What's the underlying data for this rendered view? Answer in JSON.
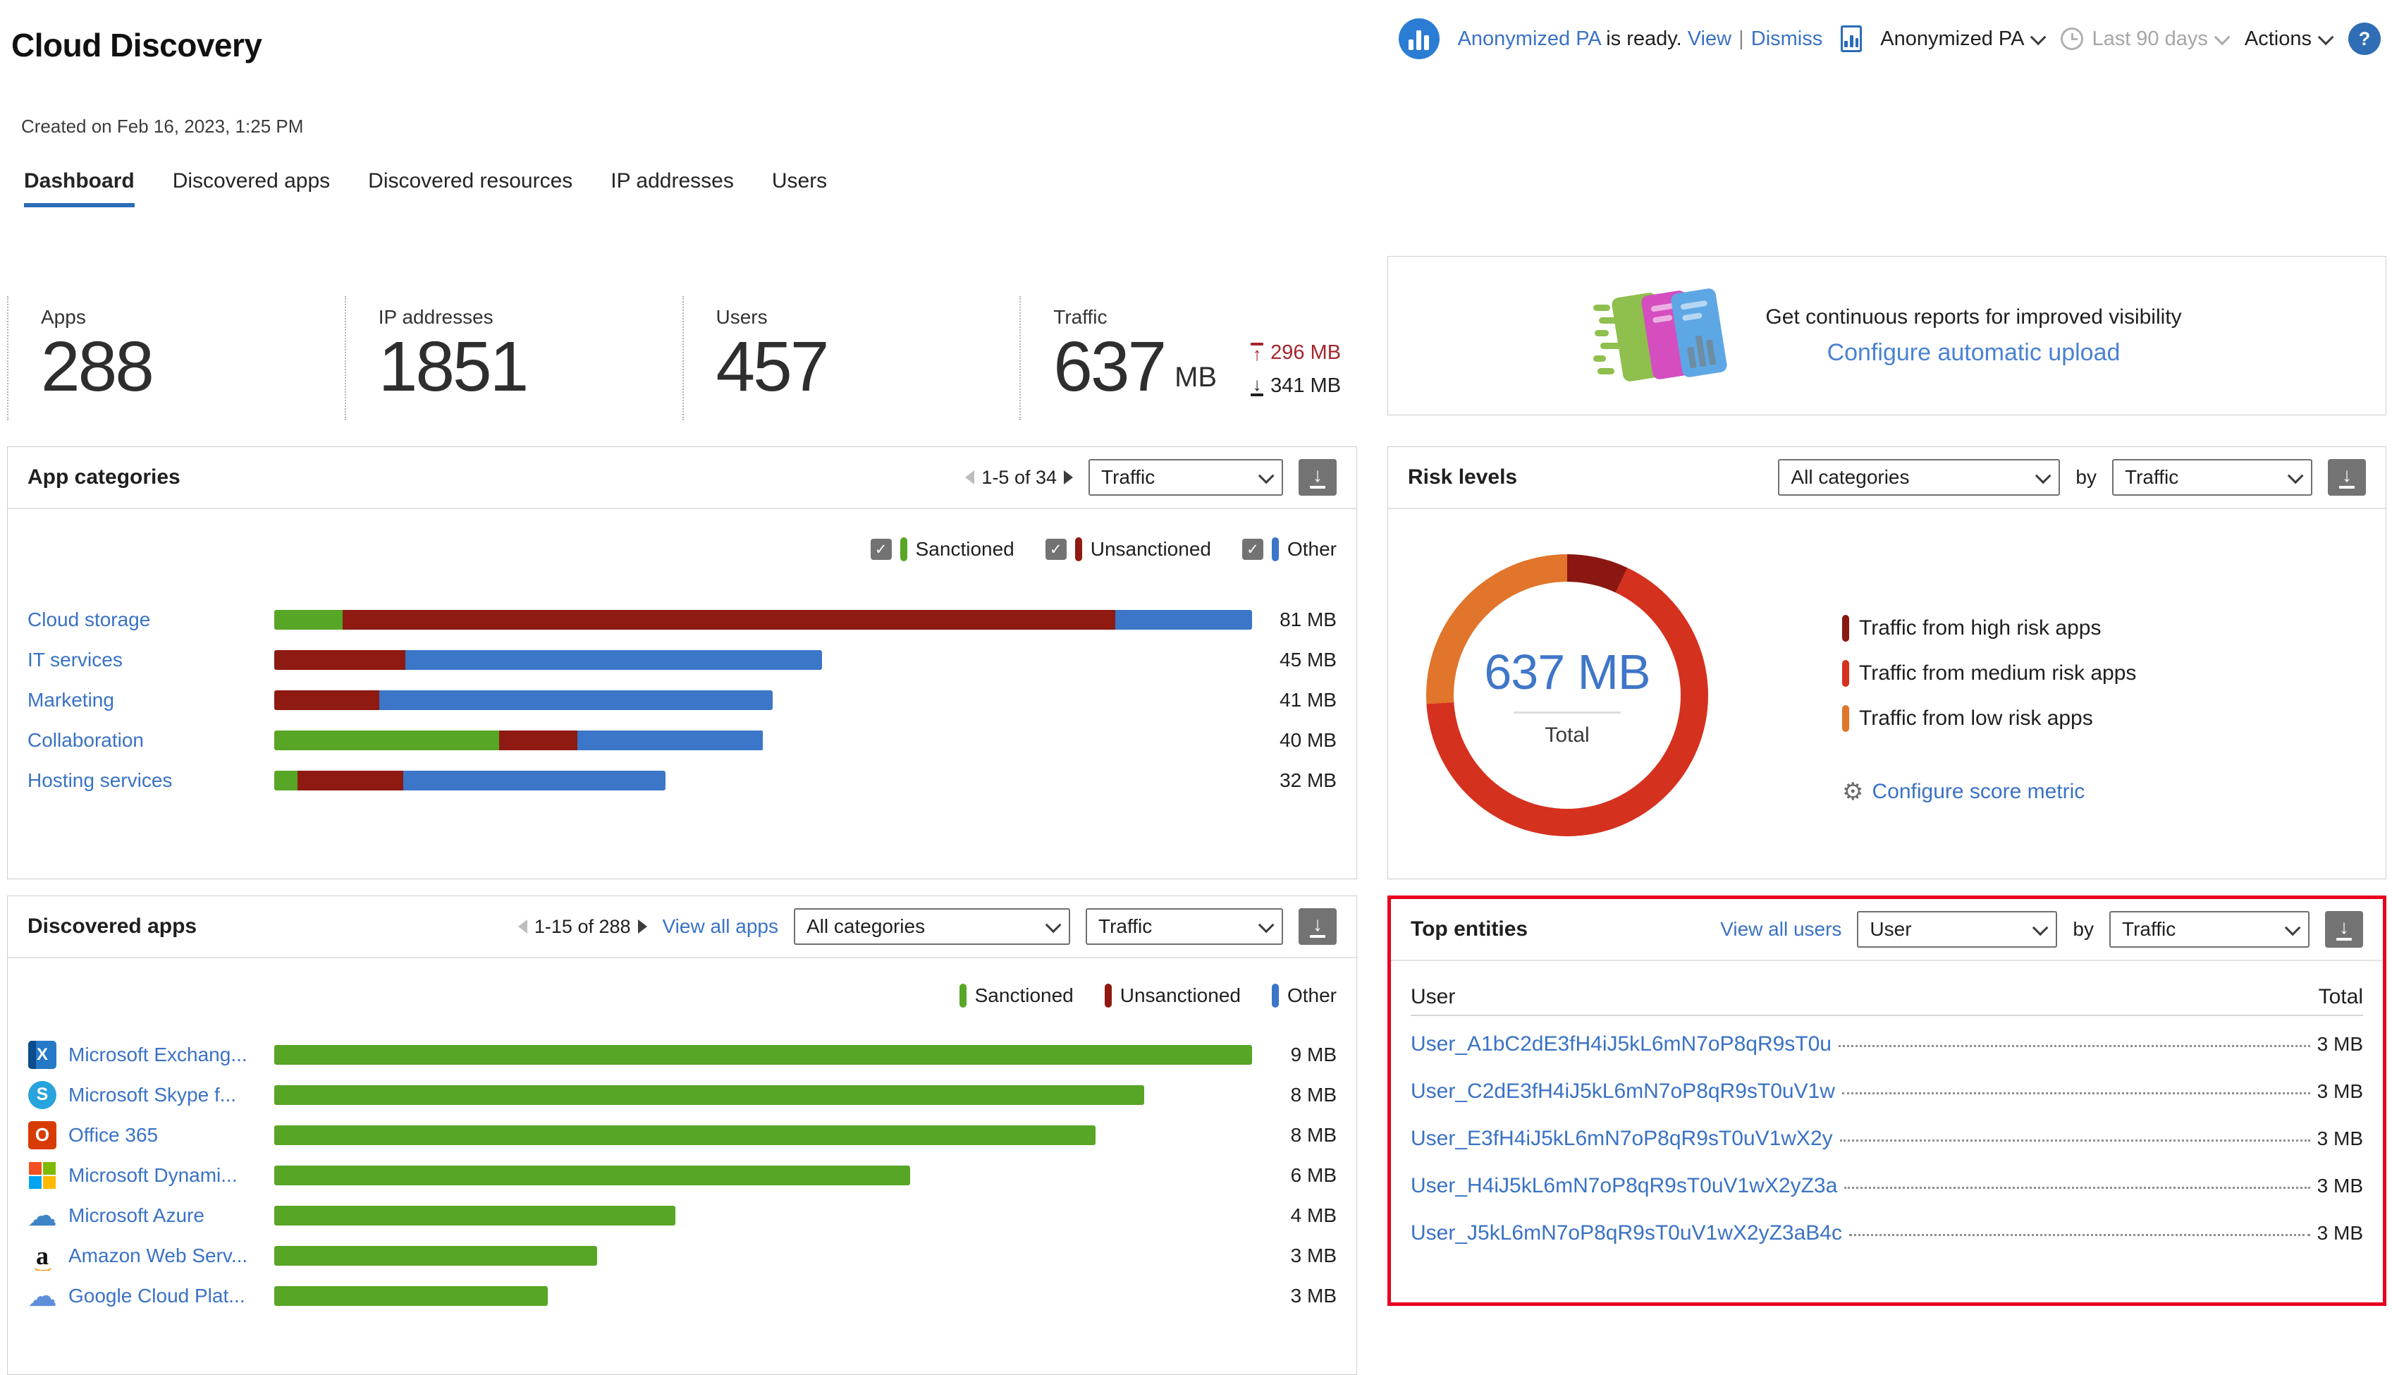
{
  "colors": {
    "sanctioned": "#57a626",
    "unsanctioned": "#8e1a11",
    "other": "#3b76c8",
    "risk_high": "#8a1712",
    "risk_medium": "#d5311f",
    "risk_low": "#e0752b",
    "upload_red": "#a4262c",
    "highlight_red": "#e8001f",
    "link_blue": "#3a72c5",
    "tab_underline_blue": "#2b6cb8"
  },
  "page": {
    "title": "Cloud Discovery",
    "created": "Created on Feb 16, 2023, 1:25 PM"
  },
  "header": {
    "ready_name": "Anonymized PA",
    "ready_suffix": "is ready.",
    "view": "View",
    "divider": "|",
    "dismiss": "Dismiss",
    "report_name": "Anonymized PA",
    "time_range": "Last 90 days",
    "actions": "Actions",
    "help": "?"
  },
  "tabs": [
    {
      "label": "Dashboard",
      "active": true
    },
    {
      "label": "Discovered apps"
    },
    {
      "label": "Discovered resources"
    },
    {
      "label": "IP addresses"
    },
    {
      "label": "Users"
    }
  ],
  "stats": [
    {
      "label": "Apps",
      "value": "288"
    },
    {
      "label": "IP addresses",
      "value": "1851"
    },
    {
      "label": "Users",
      "value": "457"
    },
    {
      "label": "Traffic",
      "value": "637",
      "unit": "MB",
      "upload": "296 MB",
      "download": "341 MB"
    }
  ],
  "promo": {
    "title": "Get continuous reports for improved visibility",
    "link": "Configure automatic upload"
  },
  "app_categories": {
    "title": "App categories",
    "pagination": "1-5 of 34",
    "sort_select": "Traffic",
    "legend": [
      {
        "label": "Sanctioned",
        "color": "sanctioned",
        "checked": true
      },
      {
        "label": "Unsanctioned",
        "color": "unsanctioned",
        "checked": true
      },
      {
        "label": "Other",
        "color": "other",
        "checked": true
      }
    ],
    "rows": [
      {
        "label": "Cloud storage",
        "value": "81 MB",
        "width_pct": 100,
        "segments": [
          {
            "color": "sanctioned",
            "pct": 7
          },
          {
            "color": "unsanctioned",
            "pct": 79
          },
          {
            "color": "other",
            "pct": 14
          }
        ]
      },
      {
        "label": "IT services",
        "value": "45 MB",
        "width_pct": 56,
        "segments": [
          {
            "color": "unsanctioned",
            "pct": 24
          },
          {
            "color": "other",
            "pct": 76
          }
        ]
      },
      {
        "label": "Marketing",
        "value": "41 MB",
        "width_pct": 51,
        "segments": [
          {
            "color": "unsanctioned",
            "pct": 21
          },
          {
            "color": "other",
            "pct": 79
          }
        ]
      },
      {
        "label": "Collaboration",
        "value": "40 MB",
        "width_pct": 50,
        "segments": [
          {
            "color": "sanctioned",
            "pct": 46
          },
          {
            "color": "unsanctioned",
            "pct": 16
          },
          {
            "color": "other",
            "pct": 38
          }
        ]
      },
      {
        "label": "Hosting services",
        "value": "32 MB",
        "width_pct": 40,
        "segments": [
          {
            "color": "sanctioned",
            "pct": 6
          },
          {
            "color": "unsanctioned",
            "pct": 27
          },
          {
            "color": "other",
            "pct": 67
          }
        ]
      }
    ]
  },
  "risk_levels": {
    "title": "Risk levels",
    "category_select": "All categories",
    "by_label": "by",
    "sort_select": "Traffic",
    "donut": {
      "center_value": "637 MB",
      "center_label": "Total",
      "segments": [
        {
          "label": "Traffic from high risk apps",
          "color": "risk_high",
          "pct": 7
        },
        {
          "label": "Traffic from medium risk apps",
          "color": "risk_medium",
          "pct": 67
        },
        {
          "label": "Traffic from low risk apps",
          "color": "risk_low",
          "pct": 26
        }
      ]
    },
    "legend": [
      {
        "label": "Traffic from high risk apps",
        "color": "risk_high"
      },
      {
        "label": "Traffic from medium risk apps",
        "color": "risk_medium"
      },
      {
        "label": "Traffic from low risk apps",
        "color": "risk_low"
      }
    ],
    "configure_link": "Configure score metric"
  },
  "discovered_apps": {
    "title": "Discovered apps",
    "pagination": "1-15 of 288",
    "view_all": "View all apps",
    "category_select": "All categories",
    "sort_select": "Traffic",
    "legend": [
      {
        "label": "Sanctioned",
        "color": "sanctioned"
      },
      {
        "label": "Unsanctioned",
        "color": "unsanctioned"
      },
      {
        "label": "Other",
        "color": "other"
      }
    ],
    "rows": [
      {
        "label": "Microsoft Exchang...",
        "icon": "exchange",
        "value": "9 MB",
        "width_pct": 100,
        "segments": [
          {
            "color": "sanctioned",
            "pct": 100
          }
        ]
      },
      {
        "label": "Microsoft Skype f...",
        "icon": "skype",
        "value": "8 MB",
        "width_pct": 89,
        "segments": [
          {
            "color": "sanctioned",
            "pct": 100
          }
        ]
      },
      {
        "label": "Office 365",
        "icon": "office",
        "value": "8 MB",
        "width_pct": 84,
        "segments": [
          {
            "color": "sanctioned",
            "pct": 100
          }
        ]
      },
      {
        "label": "Microsoft Dynami...",
        "icon": "ms-grid",
        "value": "6 MB",
        "width_pct": 65,
        "segments": [
          {
            "color": "sanctioned",
            "pct": 100
          }
        ]
      },
      {
        "label": "Microsoft Azure",
        "icon": "azure",
        "value": "4 MB",
        "width_pct": 41,
        "segments": [
          {
            "color": "sanctioned",
            "pct": 100
          }
        ]
      },
      {
        "label": "Amazon Web Serv...",
        "icon": "amazon",
        "value": "3 MB",
        "width_pct": 33,
        "segments": [
          {
            "color": "sanctioned",
            "pct": 100
          }
        ]
      },
      {
        "label": "Google Cloud Plat...",
        "icon": "gcp",
        "value": "3 MB",
        "width_pct": 28,
        "segments": [
          {
            "color": "sanctioned",
            "pct": 100
          }
        ]
      }
    ]
  },
  "top_entities": {
    "title": "Top entities",
    "view_all": "View all users",
    "entity_select": "User",
    "by_label": "by",
    "sort_select": "Traffic",
    "col_user": "User",
    "col_total": "Total",
    "rows": [
      {
        "user": "User_A1bC2dE3fH4iJ5kL6mN7oP8qR9sT0u",
        "total": "3 MB"
      },
      {
        "user": "User_C2dE3fH4iJ5kL6mN7oP8qR9sT0uV1w",
        "total": "3 MB"
      },
      {
        "user": "User_E3fH4iJ5kL6mN7oP8qR9sT0uV1wX2y",
        "total": "3 MB"
      },
      {
        "user": "User_H4iJ5kL6mN7oP8qR9sT0uV1wX2yZ3a",
        "total": "3 MB"
      },
      {
        "user": "User_J5kL6mN7oP8qR9sT0uV1wX2yZ3aB4c",
        "total": "3 MB"
      }
    ]
  }
}
